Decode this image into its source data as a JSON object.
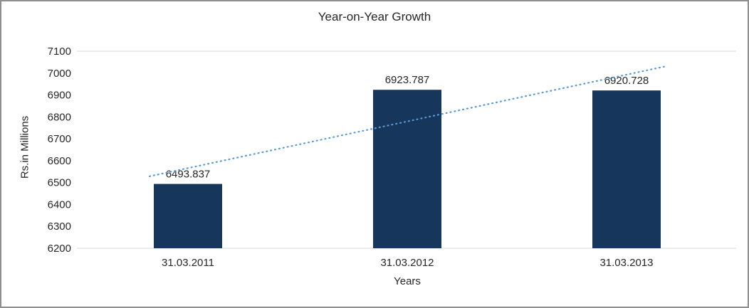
{
  "chart_data": {
    "type": "bar",
    "title": "Year-on-Year Growth",
    "xlabel": "Years",
    "ylabel": "Rs.in Millions",
    "categories": [
      "31.03.2011",
      "31.03.2012",
      "31.03.2013"
    ],
    "values": [
      6493.837,
      6923.787,
      6920.728
    ],
    "data_labels": [
      "6493.837",
      "6923.787",
      "6920.728"
    ],
    "ylim": [
      6200,
      7100
    ],
    "ytick_step": 100,
    "yticks": [
      6200,
      6300,
      6400,
      6500,
      6600,
      6700,
      6800,
      6900,
      7000,
      7100
    ],
    "legend": "none",
    "grid": "top-and-baseline-only",
    "bar_color": "#16365C",
    "axis_line_color": "#d9d9d9",
    "label_color": "#262626",
    "trendline": {
      "type": "linear",
      "style": "dotted",
      "color": "#5b9bd5"
    }
  }
}
